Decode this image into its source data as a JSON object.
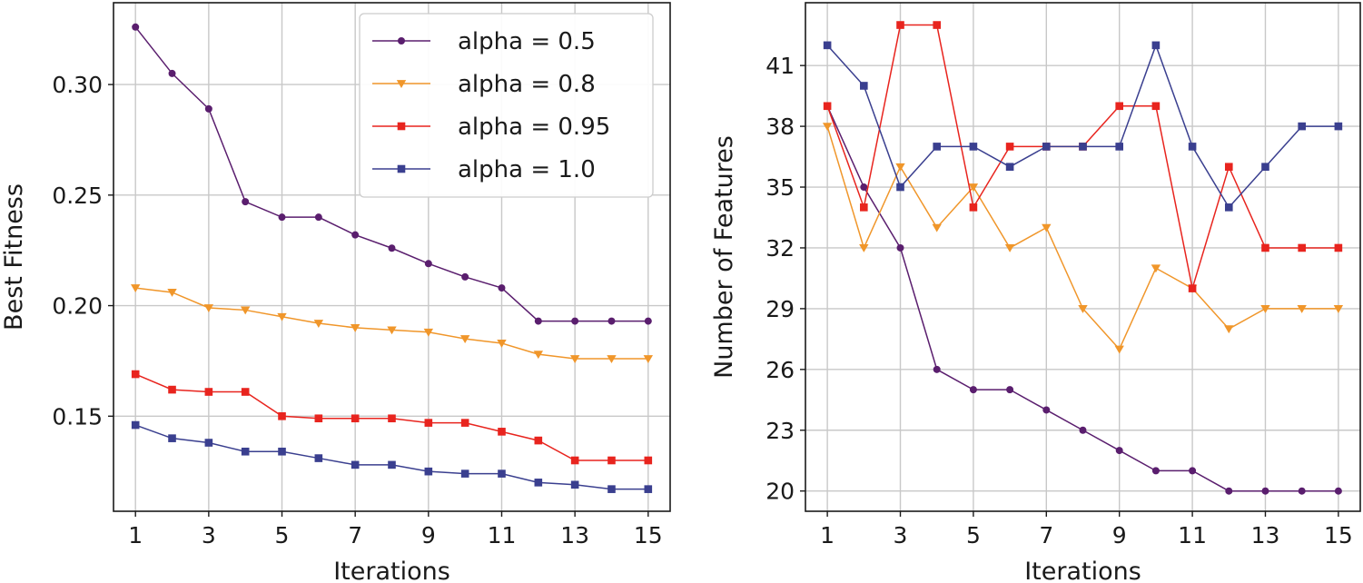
{
  "chart_data": [
    {
      "type": "line",
      "xlabel": "Iterations",
      "ylabel": "Best Fitness",
      "x": [
        1,
        2,
        3,
        4,
        5,
        6,
        7,
        8,
        9,
        10,
        11,
        12,
        13,
        14,
        15
      ],
      "xticks": [
        "1",
        "3",
        "5",
        "7",
        "9",
        "11",
        "13",
        "15"
      ],
      "yticks": [
        "0.15",
        "0.20",
        "0.25",
        "0.30"
      ],
      "ylim": [
        0.107,
        0.337
      ],
      "xlim": [
        0.4,
        15.6
      ],
      "grid": true,
      "legend": "top-right",
      "series": [
        {
          "name": "alpha = 0.5",
          "color": "#5a1e6e",
          "marker": "circle",
          "values": [
            0.326,
            0.305,
            0.289,
            0.247,
            0.24,
            0.24,
            0.232,
            0.226,
            0.219,
            0.213,
            0.208,
            0.193,
            0.193,
            0.193,
            0.193
          ]
        },
        {
          "name": "alpha = 0.8",
          "color": "#f0962a",
          "marker": "triangle-down",
          "values": [
            0.208,
            0.206,
            0.199,
            0.198,
            0.195,
            0.192,
            0.19,
            0.189,
            0.188,
            0.185,
            0.183,
            0.178,
            0.176,
            0.176,
            0.176
          ]
        },
        {
          "name": "alpha = 0.95",
          "color": "#e8241e",
          "marker": "square",
          "values": [
            0.169,
            0.162,
            0.161,
            0.161,
            0.15,
            0.149,
            0.149,
            0.149,
            0.147,
            0.147,
            0.143,
            0.139,
            0.13,
            0.13,
            0.13
          ]
        },
        {
          "name": "alpha = 1.0",
          "color": "#3a3f8f",
          "marker": "square",
          "values": [
            0.146,
            0.14,
            0.138,
            0.134,
            0.134,
            0.131,
            0.128,
            0.128,
            0.125,
            0.124,
            0.124,
            0.12,
            0.119,
            0.117,
            0.117
          ]
        }
      ]
    },
    {
      "type": "line",
      "xlabel": "Iterations",
      "ylabel": "Number of Features",
      "x": [
        1,
        2,
        3,
        4,
        5,
        6,
        7,
        8,
        9,
        10,
        11,
        12,
        13,
        14,
        15
      ],
      "xticks": [
        "1",
        "3",
        "5",
        "7",
        "9",
        "11",
        "13",
        "15"
      ],
      "yticks": [
        "20",
        "23",
        "26",
        "29",
        "32",
        "35",
        "38",
        "41"
      ],
      "ylim": [
        19.0,
        44.1
      ],
      "xlim": [
        0.4,
        15.6
      ],
      "grid": true,
      "series": [
        {
          "name": "alpha = 0.5",
          "color": "#5a1e6e",
          "marker": "circle",
          "values": [
            39,
            35,
            32,
            26,
            25,
            25,
            24,
            23,
            22,
            21,
            21,
            20,
            20,
            20,
            20
          ]
        },
        {
          "name": "alpha = 0.8",
          "color": "#f0962a",
          "marker": "triangle-down",
          "values": [
            38,
            32,
            36,
            33,
            35,
            32,
            33,
            29,
            27,
            31,
            30,
            28,
            29,
            29,
            29
          ]
        },
        {
          "name": "alpha = 0.95",
          "color": "#e8241e",
          "marker": "square",
          "values": [
            39,
            34,
            43,
            43,
            34,
            37,
            37,
            37,
            39,
            39,
            30,
            36,
            32,
            32,
            32
          ]
        },
        {
          "name": "alpha = 1.0",
          "color": "#3a3f8f",
          "marker": "square",
          "values": [
            42,
            40,
            35,
            37,
            37,
            36,
            37,
            37,
            37,
            42,
            37,
            34,
            36,
            38,
            38
          ]
        }
      ]
    }
  ]
}
